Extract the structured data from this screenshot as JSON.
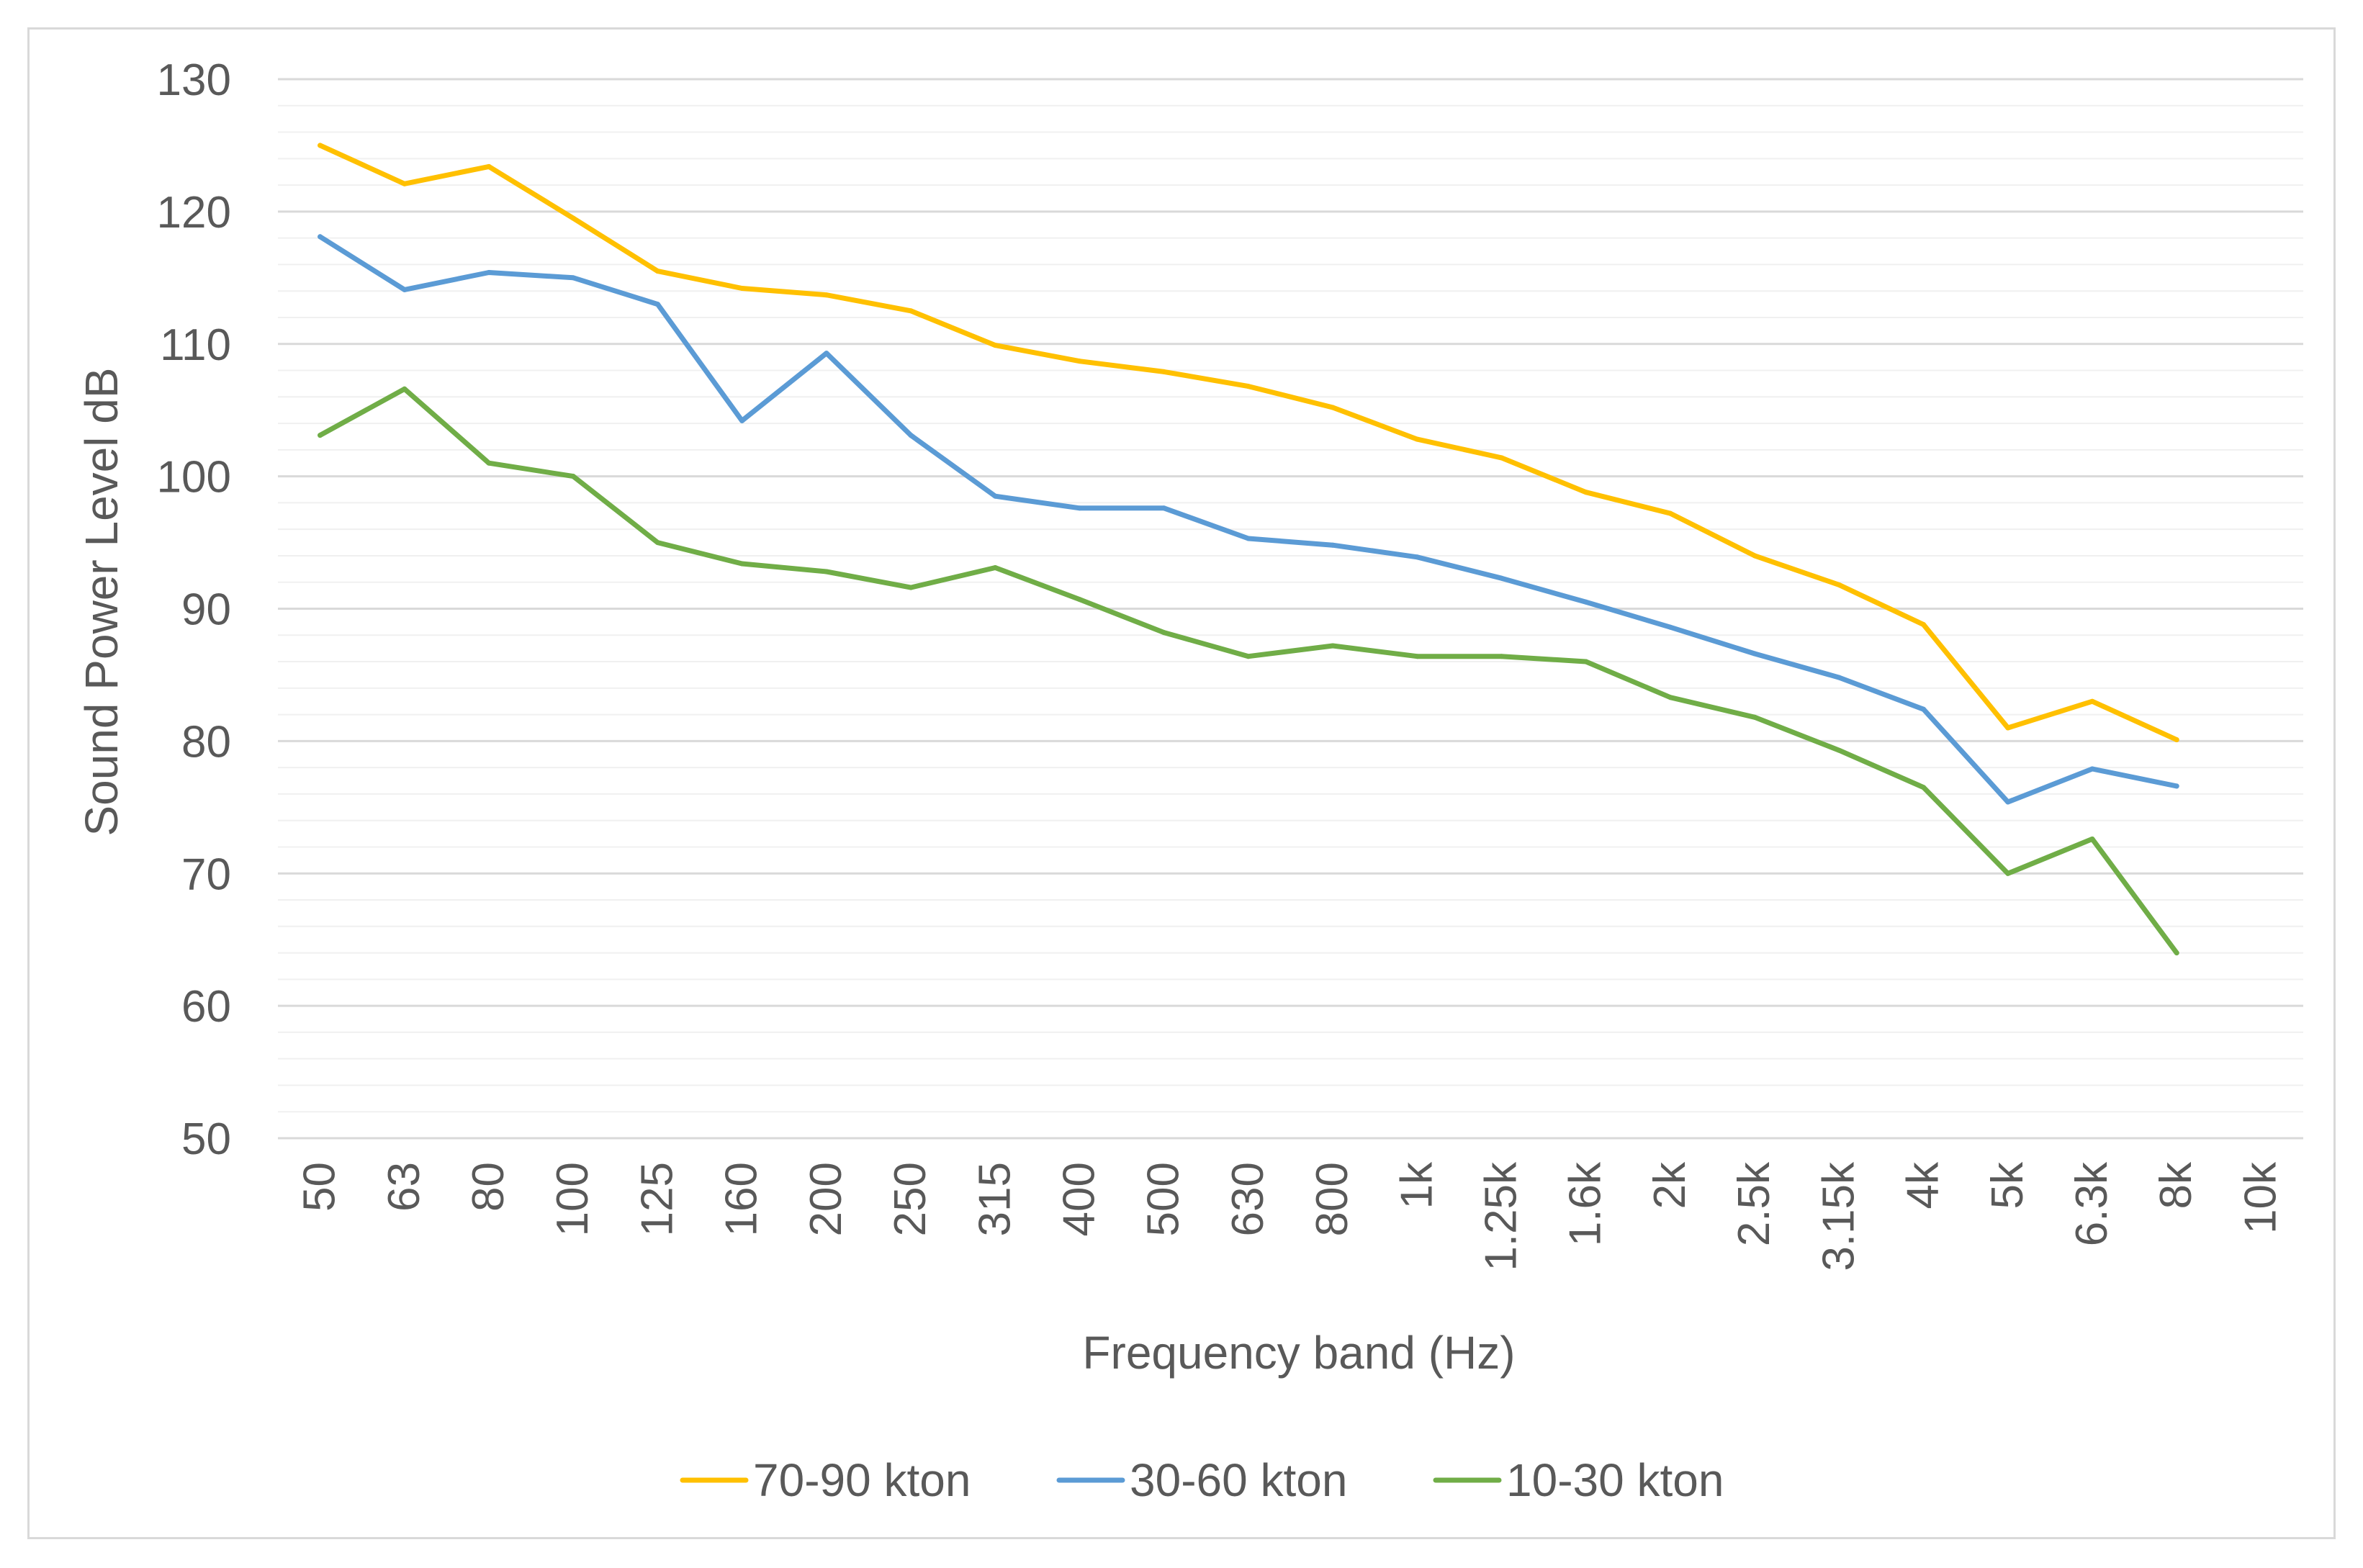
{
  "chart_data": {
    "type": "line",
    "title": "",
    "xlabel": "Frequency band (Hz)",
    "ylabel": "Sound Power Level dB",
    "ylim": [
      50,
      130
    ],
    "yticks": [
      "50",
      "60",
      "70",
      "80",
      "90",
      "100",
      "110",
      "120",
      "130"
    ],
    "categories": [
      "50",
      "63",
      "80",
      "100",
      "125",
      "160",
      "200",
      "250",
      "315",
      "400",
      "500",
      "630",
      "800",
      "1k",
      "1.25k",
      "1.6k",
      "2k",
      "2.5k",
      "3.15k",
      "4k",
      "5k",
      "6.3k",
      "8k",
      "10k"
    ],
    "grid": {
      "major": true,
      "minor": true
    },
    "legend_position": "bottom",
    "series": [
      {
        "name": "70-90 kton",
        "color": "#FFC000",
        "values": [
          125.0,
          122.1,
          123.4,
          119.5,
          115.5,
          114.2,
          113.7,
          112.5,
          109.9,
          108.7,
          107.9,
          106.8,
          105.2,
          102.8,
          101.4,
          98.8,
          97.2,
          94.0,
          91.8,
          88.8,
          81.0,
          83.0,
          80.1,
          null
        ]
      },
      {
        "name": "30-60 kton",
        "color": "#5B9BD5",
        "values": [
          118.1,
          114.1,
          115.4,
          115.0,
          113.0,
          104.2,
          109.3,
          103.1,
          98.5,
          97.6,
          97.6,
          95.3,
          94.8,
          93.9,
          92.3,
          90.5,
          88.6,
          86.6,
          84.8,
          82.4,
          75.4,
          77.9,
          76.6,
          null
        ]
      },
      {
        "name": "10-30 kton",
        "color": "#70AD47",
        "values": [
          103.1,
          106.6,
          101.0,
          100.0,
          95.0,
          93.4,
          92.8,
          91.6,
          93.1,
          90.7,
          88.2,
          86.4,
          87.2,
          86.4,
          86.4,
          86.0,
          83.3,
          81.8,
          79.3,
          76.5,
          70.0,
          72.6,
          64.0,
          null
        ]
      }
    ]
  }
}
